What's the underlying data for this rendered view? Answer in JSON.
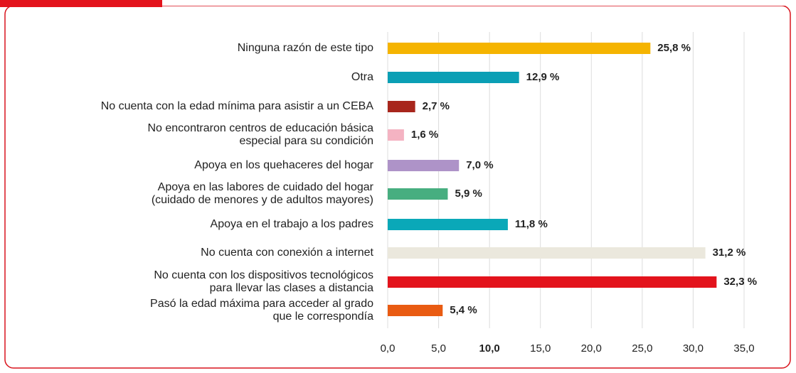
{
  "chart_data": {
    "type": "bar",
    "orientation": "horizontal",
    "categories": [
      "Ninguna razón de este tipo",
      "Otra",
      "No cuenta con la edad mínima para asistir a un CEBA",
      "No encontraron centros de educación básica\nespecial para su condición",
      "Apoya en los quehaceres del hogar",
      "Apoya en las labores de cuidado del hogar\n(cuidado de menores y de adultos mayores)",
      "Apoya en el trabajo a los padres",
      "No cuenta con conexión a internet",
      "No cuenta con los dispositivos tecnológicos\npara llevar las clases a distancia",
      "Pasó la edad máxima para acceder al grado\nque le correspondía"
    ],
    "values": [
      25.8,
      12.9,
      2.7,
      1.6,
      7.0,
      5.9,
      11.8,
      31.2,
      32.3,
      5.4
    ],
    "value_labels": [
      "25,8 %",
      "12,9 %",
      "2,7 %",
      "1,6 %",
      "7,0 %",
      "5,9 %",
      "11,8 %",
      "31,2 %",
      "32,3 %",
      "5,4 %"
    ],
    "colors": [
      "#f5b400",
      "#0a9fb5",
      "#a8261c",
      "#f4b3c2",
      "#ae93c8",
      "#47ae80",
      "#0aa8b8",
      "#ebe8dd",
      "#e3131c",
      "#e95b12"
    ],
    "xlim": [
      0,
      35
    ],
    "xticks": [
      {
        "value": 0,
        "label": "0,0"
      },
      {
        "value": 5,
        "label": "5,0"
      },
      {
        "value": 10,
        "label": "10,0"
      },
      {
        "value": 15,
        "label": "15,0"
      },
      {
        "value": 20,
        "label": "20,0"
      },
      {
        "value": 25,
        "label": "25,0"
      },
      {
        "value": 30,
        "label": "30,0"
      },
      {
        "value": 35,
        "label": "35,0"
      }
    ],
    "grid": true
  }
}
